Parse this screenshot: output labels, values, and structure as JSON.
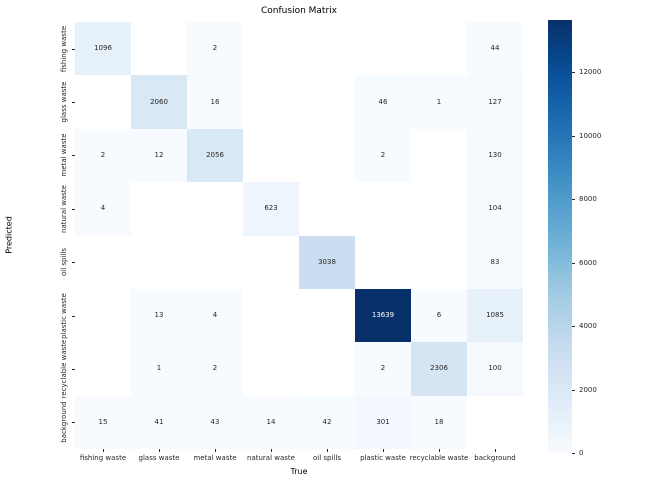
{
  "chart_data": {
    "type": "heatmap",
    "title": "Confusion Matrix",
    "xlabel": "True",
    "ylabel": "Predicted",
    "x_categories": [
      "fishing waste",
      "glass waste",
      "metal waste",
      "natural waste",
      "oil spills",
      "plastic waste",
      "recyclable waste",
      "background"
    ],
    "y_categories": [
      "fishing waste",
      "glass waste",
      "metal waste",
      "natural waste",
      "oil spills",
      "plastic waste",
      "recyclable waste",
      "background"
    ],
    "matrix": [
      [
        1096,
        null,
        2,
        null,
        null,
        null,
        null,
        44
      ],
      [
        null,
        2060,
        16,
        null,
        null,
        46,
        1,
        127
      ],
      [
        2,
        12,
        2056,
        null,
        null,
        2,
        null,
        130
      ],
      [
        4,
        null,
        null,
        623,
        null,
        null,
        null,
        104
      ],
      [
        null,
        null,
        null,
        null,
        3038,
        null,
        null,
        83
      ],
      [
        null,
        13,
        4,
        null,
        null,
        13639,
        6,
        1085
      ],
      [
        null,
        1,
        2,
        null,
        null,
        2,
        2306,
        100
      ],
      [
        15,
        41,
        43,
        14,
        42,
        301,
        18,
        null
      ]
    ],
    "vmin": 0,
    "vmax": 13639,
    "colormap": "Blues",
    "colorbar_ticks": [
      0,
      2000,
      4000,
      6000,
      8000,
      10000,
      12000
    ],
    "colorbar_position": "right",
    "grid": false
  },
  "colors": {
    "background": "#ffffff",
    "cmap_low": "#f7fbff",
    "cmap_high": "#08306b",
    "tick_text": "#262626",
    "annot_dark": "#262626",
    "annot_light": "#ffffff",
    "empty_cell": "#ffffff"
  }
}
